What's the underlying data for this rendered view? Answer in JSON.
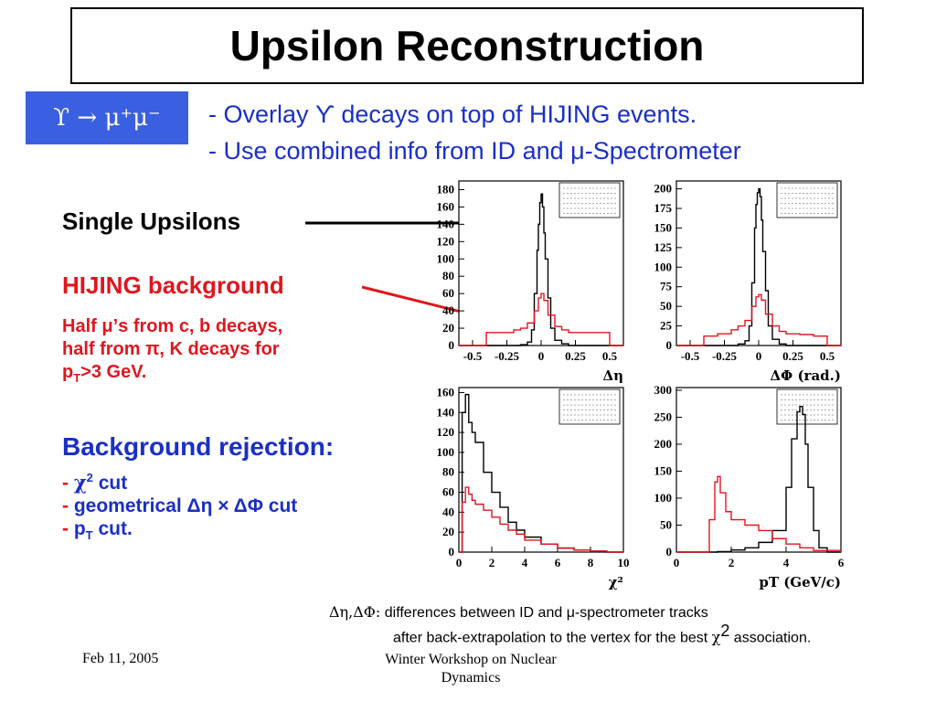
{
  "slide": {
    "title": "Upsilon Reconstruction",
    "decay_badge": "ϒ → μ⁺μ⁻",
    "bullets": [
      "- Overlay ϒ decays on top of HIJING events.",
      "- Use combined info from ID and μ-Spectrometer"
    ],
    "left_panel": {
      "single_label": "Single Upsilons",
      "hijing_label": "HIJING background",
      "hijing_note_line1": "Half μ’s from c, b decays,",
      "hijing_note_line2": "half from π, K decays for",
      "hijing_note_line3": "p",
      "hijing_note_sub": "T",
      "hijing_note_tail": ">3 GeV.",
      "rejection_title": "Background rejection:",
      "cut1_prefix": "- ",
      "cut1": "χ",
      "cut1_sup": "2",
      "cut1_tail": " cut",
      "cut2_prefix": "- ",
      "cut2": "geometrical Δη × ΔΦ cut",
      "cut3_prefix": "- ",
      "cut3": "p",
      "cut3_sub": "T",
      "cut3_tail": " cut."
    },
    "note": {
      "line1_symbols": "Δη,ΔΦ:",
      "line1_text": " differences between ID and μ-spectrometer tracks",
      "line2_text": "after back-extrapolation to the vertex for the best ",
      "line2_chi": "χ",
      "line2_sup": "2",
      "line2_tail": " association."
    },
    "footer": {
      "date": "Feb 11, 2005",
      "event_line1": "Winter Workshop on Nuclear",
      "event_line2": "Dynamics"
    }
  },
  "colors": {
    "signal": "#000000",
    "background": "#e0161e",
    "text_blue": "#1a2fc6",
    "badge_blue": "#3a5fe0"
  },
  "chart_data": [
    {
      "type": "line",
      "xlabel": "Δη",
      "xlim": [
        -0.6,
        0.6
      ],
      "ylim": [
        0,
        190
      ],
      "xticks": [
        "-0.5",
        "-0.25",
        "0",
        "0.25",
        "0.5"
      ],
      "yticks": [
        "0",
        "20",
        "40",
        "60",
        "80",
        "100",
        "120",
        "140",
        "160",
        "180"
      ],
      "series": [
        {
          "color": "#000000",
          "x": [
            -0.6,
            -0.5,
            -0.4,
            -0.3,
            -0.2,
            -0.15,
            -0.1,
            -0.07,
            -0.05,
            -0.03,
            -0.02,
            -0.01,
            0,
            0.01,
            0.02,
            0.03,
            0.05,
            0.07,
            0.1,
            0.15,
            0.2,
            0.3,
            0.4,
            0.5,
            0.6
          ],
          "values": [
            0,
            0,
            0,
            0,
            0,
            1,
            4,
            18,
            60,
            110,
            140,
            165,
            175,
            160,
            130,
            100,
            55,
            20,
            6,
            2,
            0,
            0,
            0,
            0,
            0
          ]
        },
        {
          "color": "#e0161e",
          "x": [
            -0.6,
            -0.5,
            -0.4,
            -0.3,
            -0.2,
            -0.15,
            -0.1,
            -0.05,
            -0.02,
            0,
            0.02,
            0.05,
            0.1,
            0.15,
            0.2,
            0.3,
            0.4,
            0.5,
            0.6
          ],
          "values": [
            0,
            0,
            15,
            15,
            18,
            20,
            26,
            40,
            55,
            60,
            52,
            35,
            22,
            18,
            15,
            15,
            15,
            0,
            0
          ]
        }
      ]
    },
    {
      "type": "line",
      "xlabel": "ΔΦ (rad.)",
      "xlim": [
        -0.6,
        0.6
      ],
      "ylim": [
        0,
        210
      ],
      "xticks": [
        "-0.5",
        "-0.25",
        "0",
        "0.25",
        "0.5"
      ],
      "yticks": [
        "0",
        "25",
        "50",
        "75",
        "100",
        "125",
        "150",
        "175",
        "200"
      ],
      "series": [
        {
          "color": "#000000",
          "x": [
            -0.6,
            -0.5,
            -0.4,
            -0.3,
            -0.2,
            -0.15,
            -0.1,
            -0.07,
            -0.05,
            -0.03,
            -0.02,
            -0.01,
            0,
            0.01,
            0.02,
            0.03,
            0.05,
            0.07,
            0.1,
            0.15,
            0.2,
            0.3,
            0.4,
            0.5,
            0.6
          ],
          "values": [
            0,
            0,
            0,
            0,
            0,
            2,
            6,
            25,
            80,
            150,
            180,
            195,
            200,
            190,
            160,
            120,
            70,
            25,
            8,
            2,
            0,
            0,
            0,
            0,
            0
          ]
        },
        {
          "color": "#e0161e",
          "x": [
            -0.6,
            -0.5,
            -0.4,
            -0.3,
            -0.2,
            -0.15,
            -0.1,
            -0.05,
            -0.02,
            0,
            0.02,
            0.05,
            0.1,
            0.15,
            0.2,
            0.3,
            0.4,
            0.5,
            0.6
          ],
          "values": [
            0,
            0,
            12,
            15,
            20,
            25,
            32,
            50,
            62,
            65,
            58,
            40,
            25,
            18,
            15,
            14,
            12,
            0,
            0
          ]
        }
      ]
    },
    {
      "type": "line",
      "xlabel": "χ²",
      "xlim": [
        0,
        10
      ],
      "ylim": [
        0,
        165
      ],
      "xticks": [
        "0",
        "2",
        "4",
        "6",
        "8",
        "10"
      ],
      "yticks": [
        "0",
        "20",
        "40",
        "60",
        "80",
        "100",
        "120",
        "140",
        "160"
      ],
      "series": [
        {
          "color": "#000000",
          "x": [
            0,
            0.2,
            0.4,
            0.6,
            0.8,
            1,
            1.5,
            2,
            2.5,
            3,
            3.5,
            4,
            5,
            6,
            7,
            8,
            9,
            10
          ],
          "values": [
            0,
            140,
            158,
            130,
            120,
            110,
            80,
            60,
            45,
            30,
            22,
            15,
            8,
            4,
            2,
            1,
            0,
            0
          ]
        },
        {
          "color": "#e0161e",
          "x": [
            0,
            0.2,
            0.4,
            0.6,
            0.8,
            1,
            1.5,
            2,
            2.5,
            3,
            3.5,
            4,
            5,
            6,
            7,
            8,
            9,
            10
          ],
          "values": [
            0,
            50,
            65,
            58,
            52,
            48,
            42,
            35,
            28,
            22,
            18,
            12,
            8,
            4,
            2,
            1,
            0,
            0
          ]
        }
      ]
    },
    {
      "type": "line",
      "xlabel": "pT (GeV/c)",
      "xlim": [
        0,
        6
      ],
      "ylim": [
        0,
        305
      ],
      "xticks": [
        "0",
        "2",
        "4",
        "6"
      ],
      "yticks": [
        "0",
        "50",
        "100",
        "150",
        "200",
        "250",
        "300"
      ],
      "series": [
        {
          "color": "#000000",
          "x": [
            0,
            1,
            1.5,
            2,
            2.5,
            3,
            3.5,
            4,
            4.2,
            4.4,
            4.5,
            4.6,
            4.7,
            4.8,
            5,
            5.2,
            5.5,
            6
          ],
          "values": [
            0,
            0,
            1,
            4,
            8,
            18,
            40,
            120,
            210,
            260,
            270,
            255,
            200,
            120,
            40,
            8,
            0,
            0
          ]
        },
        {
          "color": "#e0161e",
          "x": [
            0,
            1,
            1.2,
            1.4,
            1.5,
            1.6,
            1.8,
            2,
            2.5,
            3,
            3.5,
            4,
            4.5,
            5,
            6
          ],
          "values": [
            0,
            0,
            60,
            130,
            140,
            110,
            75,
            60,
            50,
            40,
            25,
            15,
            8,
            3,
            0
          ]
        }
      ]
    }
  ]
}
